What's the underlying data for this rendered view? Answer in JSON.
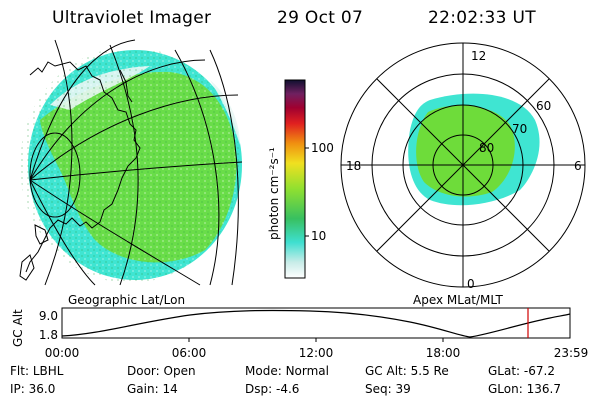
{
  "header": {
    "title": "Ultraviolet Imager",
    "date": "29 Oct 07",
    "time": "22:02:33 UT"
  },
  "colorbar": {
    "label": "photon cm⁻²s⁻¹",
    "ticks": [
      "100",
      "10"
    ]
  },
  "polar": {
    "hour_labels": {
      "top": "12",
      "left": "18",
      "right": "6",
      "bottom": "0"
    },
    "lat_labels": [
      "60",
      "70",
      "80"
    ]
  },
  "panels": {
    "left_caption": "Geographic Lat/Lon",
    "right_caption": "Apex MLat/MLT"
  },
  "altitude_plot": {
    "ylabel": "GC Alt",
    "yticks": [
      "9.0",
      "1.8"
    ],
    "xticks": [
      "00:00",
      "06:00",
      "12:00",
      "18:00",
      "23:59"
    ]
  },
  "info": {
    "row1": [
      {
        "label": "Flt:",
        "value": "LBHL"
      },
      {
        "label": "Door:",
        "value": "Open"
      },
      {
        "label": "Mode:",
        "value": "Normal"
      },
      {
        "label": "GC Alt:",
        "value": "5.5 Re"
      },
      {
        "label": "GLat:",
        "value": "-67.2"
      }
    ],
    "row2": [
      {
        "label": "IP:",
        "value": "36.0"
      },
      {
        "label": "Gain:",
        "value": "14"
      },
      {
        "label": "Dsp:",
        "value": "-4.6"
      },
      {
        "label": "Seq:",
        "value": "39"
      },
      {
        "label": "GLon:",
        "value": "136.7"
      }
    ]
  },
  "colors": {
    "aurora_green": "#6edc3a",
    "aurora_cyan": "#3ee6d0",
    "marker_red": "#d00000"
  }
}
